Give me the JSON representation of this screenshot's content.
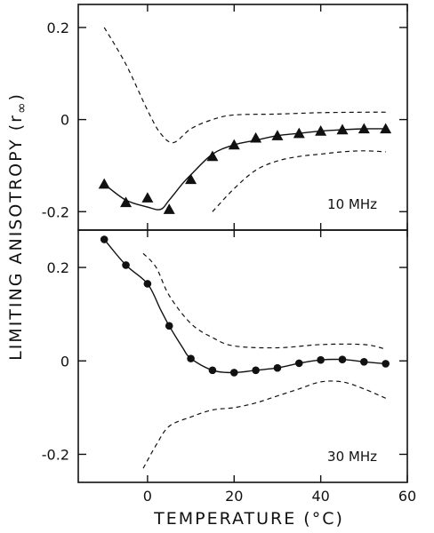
{
  "chart_data": [
    {
      "type": "line",
      "annotation": "10 MHz",
      "ylim": [
        -0.24,
        0.25
      ],
      "xlim": [
        -16,
        60
      ],
      "yticks": [
        {
          "value": 0.2,
          "label": "0.2"
        },
        {
          "value": 0,
          "label": "0"
        },
        {
          "value": -0.2,
          "label": "-0.2"
        }
      ],
      "series": [
        {
          "marker": "triangle",
          "x": [
            -10,
            -5,
            0,
            5,
            10,
            15,
            20,
            25,
            30,
            35,
            40,
            45,
            50,
            55
          ],
          "values": [
            -0.14,
            -0.18,
            -0.17,
            -0.195,
            -0.13,
            -0.08,
            -0.055,
            -0.04,
            -0.035,
            -0.03,
            -0.025,
            -0.022,
            -0.02,
            -0.02
          ]
        },
        {
          "style": "solid-fit",
          "x": [
            -10,
            -5,
            0,
            3,
            5,
            8,
            10,
            15,
            20,
            25,
            30,
            35,
            40,
            45,
            50,
            55
          ],
          "values": [
            -0.14,
            -0.175,
            -0.19,
            -0.195,
            -0.175,
            -0.14,
            -0.12,
            -0.075,
            -0.055,
            -0.045,
            -0.035,
            -0.03,
            -0.025,
            -0.022,
            -0.02,
            -0.02
          ]
        },
        {
          "style": "dashed-upper",
          "x": [
            -10,
            -5,
            0,
            3,
            6,
            10,
            15,
            20,
            30,
            40,
            50,
            55
          ],
          "values": [
            0.2,
            0.12,
            0.02,
            -0.03,
            -0.05,
            -0.02,
            0.0,
            0.01,
            0.012,
            0.015,
            0.016,
            0.016
          ]
        },
        {
          "style": "dashed-lower",
          "x": [
            15,
            20,
            25,
            30,
            35,
            40,
            45,
            50,
            55
          ],
          "values": [
            -0.2,
            -0.15,
            -0.11,
            -0.09,
            -0.08,
            -0.075,
            -0.07,
            -0.068,
            -0.07
          ]
        }
      ]
    },
    {
      "type": "line",
      "annotation": "30 MHz",
      "ylim": [
        -0.26,
        0.28
      ],
      "xlim": [
        -16,
        60
      ],
      "yticks": [
        {
          "value": 0.2,
          "label": "0.2"
        },
        {
          "value": 0,
          "label": "0"
        },
        {
          "value": -0.2,
          "label": "-0.2"
        }
      ],
      "xticks": [
        {
          "value": 0,
          "label": "0"
        },
        {
          "value": 20,
          "label": "20"
        },
        {
          "value": 40,
          "label": "40"
        },
        {
          "value": 60,
          "label": "60"
        }
      ],
      "series": [
        {
          "marker": "circle",
          "x": [
            -10,
            -5,
            0,
            5,
            10,
            15,
            20,
            25,
            30,
            35,
            40,
            45,
            50,
            55
          ],
          "values": [
            0.26,
            0.205,
            0.165,
            0.075,
            0.005,
            -0.02,
            -0.025,
            -0.02,
            -0.015,
            -0.005,
            0.002,
            0.003,
            -0.002,
            -0.006
          ]
        },
        {
          "style": "solid-fit",
          "x": [
            -10,
            -5,
            0,
            3,
            5,
            8,
            10,
            15,
            20,
            25,
            30,
            35,
            40,
            45,
            50,
            55
          ],
          "values": [
            0.26,
            0.205,
            0.165,
            0.11,
            0.075,
            0.03,
            0.005,
            -0.02,
            -0.025,
            -0.02,
            -0.015,
            -0.005,
            0.002,
            0.003,
            -0.002,
            -0.006
          ]
        },
        {
          "style": "dashed-upper",
          "x": [
            -1,
            2,
            5,
            10,
            15,
            20,
            30,
            40,
            50,
            55
          ],
          "values": [
            0.23,
            0.2,
            0.14,
            0.08,
            0.05,
            0.032,
            0.028,
            0.035,
            0.035,
            0.025
          ]
        },
        {
          "style": "dashed-lower",
          "x": [
            -1,
            2,
            5,
            10,
            15,
            20,
            25,
            30,
            35,
            40,
            45,
            50,
            55
          ],
          "values": [
            -0.23,
            -0.18,
            -0.14,
            -0.12,
            -0.105,
            -0.1,
            -0.09,
            -0.075,
            -0.06,
            -0.045,
            -0.045,
            -0.06,
            -0.08
          ]
        }
      ]
    }
  ],
  "labels": {
    "ylabel": "LIMITING  ANISOTROPY  (r",
    "ylabel_sub": "∞",
    "ylabel_close": ")",
    "xlabel": "TEMPERATURE (°C)"
  }
}
